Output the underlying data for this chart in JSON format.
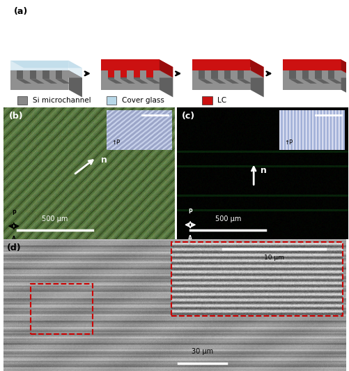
{
  "fig_width": 5.02,
  "fig_height": 5.32,
  "dpi": 100,
  "bg_color": "#ffffff",
  "panel_a": {
    "label": "(a)",
    "legend_items": [
      {
        "label": "Si microchannel",
        "color": "#888888"
      },
      {
        "label": "Cover glass",
        "color": "#b8d8e8"
      },
      {
        "label": "LC",
        "color": "#cc1111"
      }
    ]
  },
  "panel_b": {
    "label": "(b)",
    "bg_green": [
      100,
      130,
      75
    ],
    "scale_bar": "500 μm"
  },
  "panel_c": {
    "label": "(c)",
    "scale_bar": "500 μm"
  },
  "panel_d": {
    "label": "(d)",
    "scale_bar_main": "30 μm",
    "scale_bar_inset": "10 μm"
  }
}
